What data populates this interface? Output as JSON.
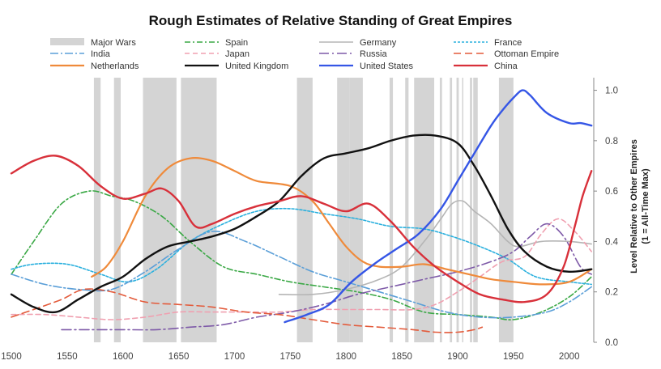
{
  "chart_data": {
    "type": "line",
    "title": "Rough Estimates of Relative Standing of Great Empires",
    "xlabel": "",
    "ylabel_line1": "Level Relative to Other Empires",
    "ylabel_line2": "(1 = All-Time Max)",
    "xlim": [
      1500,
      2022
    ],
    "ylim": [
      0.0,
      1.05
    ],
    "x_ticks": [
      1500,
      1550,
      1600,
      1650,
      1700,
      1750,
      1800,
      1850,
      1900,
      1950,
      2000
    ],
    "x_tick_labels": [
      "1500",
      "1550",
      "1600",
      "1650",
      "1700",
      "1750",
      "1800",
      "1850",
      "1900",
      "1950",
      "2000"
    ],
    "y_ticks": [
      0.0,
      0.2,
      0.4,
      0.6,
      0.8,
      1.0
    ],
    "y_tick_labels": [
      "0.0",
      "0.2",
      "0.4",
      "0.6",
      "0.8",
      "1.0"
    ],
    "wars_label": "Major Wars",
    "wars": [
      [
        1574,
        1580
      ],
      [
        1592,
        1598
      ],
      [
        1618,
        1648
      ],
      [
        1652,
        1684
      ],
      [
        1756,
        1770
      ],
      [
        1792,
        1803
      ],
      [
        1803,
        1815
      ],
      [
        1839,
        1842
      ],
      [
        1853,
        1856
      ],
      [
        1861,
        1879
      ],
      [
        1884,
        1886
      ],
      [
        1893,
        1895
      ],
      [
        1899,
        1901
      ],
      [
        1904,
        1905
      ],
      [
        1911,
        1913
      ],
      [
        1914,
        1918
      ],
      [
        1937,
        1950
      ]
    ],
    "series": [
      {
        "name": "Spain",
        "color": "#3aa845",
        "dash": "7,3,2,3",
        "width": 1.6,
        "x": [
          1500,
          1520,
          1545,
          1570,
          1590,
          1610,
          1635,
          1660,
          1690,
          1720,
          1750,
          1780,
          1810,
          1840,
          1870,
          1900,
          1930,
          1950,
          1975,
          2000,
          2020
        ],
        "y": [
          0.27,
          0.4,
          0.55,
          0.6,
          0.58,
          0.56,
          0.5,
          0.4,
          0.3,
          0.27,
          0.24,
          0.22,
          0.2,
          0.17,
          0.12,
          0.11,
          0.1,
          0.09,
          0.12,
          0.18,
          0.26
        ]
      },
      {
        "name": "Germany",
        "color": "#b5b5b5",
        "dash": "",
        "width": 1.6,
        "x": [
          1740,
          1770,
          1800,
          1830,
          1850,
          1870,
          1885,
          1895,
          1905,
          1915,
          1930,
          1945,
          1955,
          1975,
          2000,
          2020
        ],
        "y": [
          0.19,
          0.19,
          0.21,
          0.25,
          0.3,
          0.4,
          0.49,
          0.55,
          0.56,
          0.52,
          0.47,
          0.4,
          0.38,
          0.4,
          0.4,
          0.39
        ]
      },
      {
        "name": "France",
        "color": "#2ab0de",
        "dash": "3,2",
        "width": 1.6,
        "x": [
          1500,
          1520,
          1550,
          1580,
          1605,
          1630,
          1660,
          1690,
          1720,
          1750,
          1780,
          1810,
          1840,
          1870,
          1895,
          1920,
          1945,
          1970,
          2000,
          2020
        ],
        "y": [
          0.29,
          0.31,
          0.31,
          0.27,
          0.24,
          0.29,
          0.4,
          0.47,
          0.52,
          0.53,
          0.51,
          0.49,
          0.46,
          0.45,
          0.42,
          0.38,
          0.33,
          0.26,
          0.24,
          0.23
        ]
      },
      {
        "name": "India",
        "color": "#5b9fd8",
        "dash": "10,3,2,3",
        "width": 1.6,
        "x": [
          1500,
          1530,
          1560,
          1590,
          1620,
          1650,
          1680,
          1710,
          1740,
          1770,
          1800,
          1830,
          1860,
          1890,
          1920,
          1950,
          1980,
          2000,
          2020
        ],
        "y": [
          0.27,
          0.23,
          0.21,
          0.21,
          0.28,
          0.37,
          0.44,
          0.4,
          0.34,
          0.28,
          0.24,
          0.2,
          0.16,
          0.12,
          0.1,
          0.1,
          0.12,
          0.16,
          0.22
        ]
      },
      {
        "name": "Japan",
        "color": "#f0a0b0",
        "dash": "6,4",
        "width": 1.6,
        "x": [
          1500,
          1530,
          1560,
          1590,
          1620,
          1650,
          1680,
          1710,
          1740,
          1770,
          1800,
          1830,
          1860,
          1880,
          1900,
          1920,
          1940,
          1960,
          1975,
          1990,
          2005,
          2020
        ],
        "y": [
          0.11,
          0.11,
          0.1,
          0.09,
          0.1,
          0.12,
          0.12,
          0.12,
          0.12,
          0.13,
          0.13,
          0.13,
          0.13,
          0.15,
          0.2,
          0.26,
          0.32,
          0.34,
          0.43,
          0.49,
          0.44,
          0.36
        ]
      },
      {
        "name": "Russia",
        "color": "#7e5aa8",
        "dash": "12,4,2,4",
        "width": 1.6,
        "x": [
          1545,
          1570,
          1600,
          1630,
          1660,
          1690,
          1720,
          1750,
          1780,
          1810,
          1840,
          1870,
          1900,
          1930,
          1950,
          1965,
          1980,
          1995,
          2010,
          2020
        ],
        "y": [
          0.05,
          0.05,
          0.05,
          0.05,
          0.06,
          0.07,
          0.1,
          0.12,
          0.15,
          0.19,
          0.22,
          0.25,
          0.28,
          0.32,
          0.36,
          0.42,
          0.47,
          0.42,
          0.3,
          0.27
        ]
      },
      {
        "name": "Ottoman Empire",
        "color": "#e35a3a",
        "dash": "9,5",
        "width": 1.6,
        "x": [
          1500,
          1520,
          1545,
          1565,
          1590,
          1620,
          1650,
          1680,
          1710,
          1740,
          1770,
          1800,
          1830,
          1860,
          1880,
          1900,
          1915,
          1922
        ],
        "y": [
          0.1,
          0.13,
          0.17,
          0.21,
          0.2,
          0.16,
          0.15,
          0.14,
          0.12,
          0.11,
          0.09,
          0.07,
          0.06,
          0.05,
          0.04,
          0.04,
          0.05,
          0.06
        ]
      },
      {
        "name": "Netherlands",
        "color": "#ef8a3a",
        "dash": "",
        "width": 2.2,
        "x": [
          1572,
          1585,
          1600,
          1620,
          1640,
          1660,
          1680,
          1700,
          1720,
          1750,
          1770,
          1785,
          1800,
          1815,
          1830,
          1850,
          1870,
          1890,
          1910,
          1930,
          1950,
          1975,
          2000,
          2020
        ],
        "y": [
          0.26,
          0.3,
          0.4,
          0.58,
          0.69,
          0.73,
          0.72,
          0.68,
          0.64,
          0.62,
          0.56,
          0.47,
          0.38,
          0.32,
          0.3,
          0.3,
          0.31,
          0.29,
          0.27,
          0.25,
          0.24,
          0.23,
          0.24,
          0.29
        ]
      },
      {
        "name": "United Kingdom",
        "color": "#111111",
        "dash": "",
        "width": 2.4,
        "x": [
          1500,
          1520,
          1540,
          1560,
          1580,
          1600,
          1620,
          1640,
          1660,
          1680,
          1700,
          1720,
          1740,
          1760,
          1780,
          1800,
          1820,
          1840,
          1860,
          1880,
          1900,
          1915,
          1930,
          1945,
          1960,
          1980,
          2000,
          2020
        ],
        "y": [
          0.19,
          0.14,
          0.12,
          0.17,
          0.22,
          0.26,
          0.33,
          0.38,
          0.4,
          0.42,
          0.45,
          0.5,
          0.56,
          0.66,
          0.73,
          0.75,
          0.77,
          0.8,
          0.82,
          0.82,
          0.79,
          0.7,
          0.58,
          0.45,
          0.36,
          0.3,
          0.28,
          0.29
        ]
      },
      {
        "name": "United States",
        "color": "#3556e6",
        "dash": "",
        "width": 2.4,
        "x": [
          1745,
          1765,
          1785,
          1805,
          1825,
          1845,
          1865,
          1885,
          1900,
          1915,
          1930,
          1940,
          1950,
          1958,
          1965,
          1980,
          2000,
          2010,
          2020
        ],
        "y": [
          0.08,
          0.11,
          0.15,
          0.24,
          0.31,
          0.37,
          0.43,
          0.53,
          0.64,
          0.75,
          0.86,
          0.92,
          0.97,
          1.0,
          0.98,
          0.91,
          0.87,
          0.87,
          0.86
        ]
      },
      {
        "name": "China",
        "color": "#d8303a",
        "dash": "",
        "width": 2.4,
        "x": [
          1500,
          1520,
          1540,
          1560,
          1580,
          1600,
          1620,
          1635,
          1650,
          1665,
          1680,
          1700,
          1720,
          1740,
          1760,
          1780,
          1800,
          1820,
          1840,
          1860,
          1880,
          1900,
          1920,
          1940,
          1960,
          1980,
          1995,
          2005,
          2012,
          2020
        ],
        "y": [
          0.67,
          0.72,
          0.74,
          0.7,
          0.62,
          0.57,
          0.59,
          0.61,
          0.56,
          0.46,
          0.47,
          0.51,
          0.54,
          0.56,
          0.58,
          0.55,
          0.52,
          0.55,
          0.48,
          0.38,
          0.3,
          0.24,
          0.19,
          0.17,
          0.16,
          0.19,
          0.3,
          0.46,
          0.58,
          0.68
        ]
      }
    ]
  }
}
